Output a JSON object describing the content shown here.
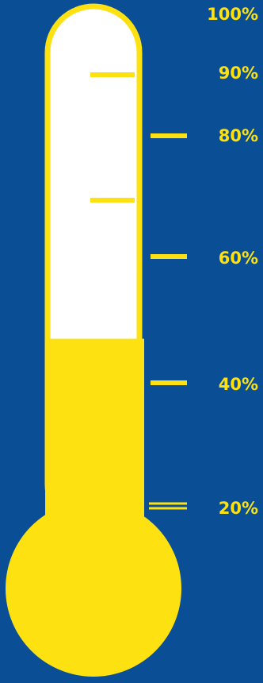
{
  "gauge": {
    "fill_level_percent": 48,
    "tick_labels": [
      "100%",
      "90%",
      "80%",
      "60%",
      "40%",
      "20%"
    ]
  },
  "colors": {
    "background": "#0a4f96",
    "fill": "#fde111",
    "tube": "#ffffff",
    "outline": "#fde111"
  }
}
